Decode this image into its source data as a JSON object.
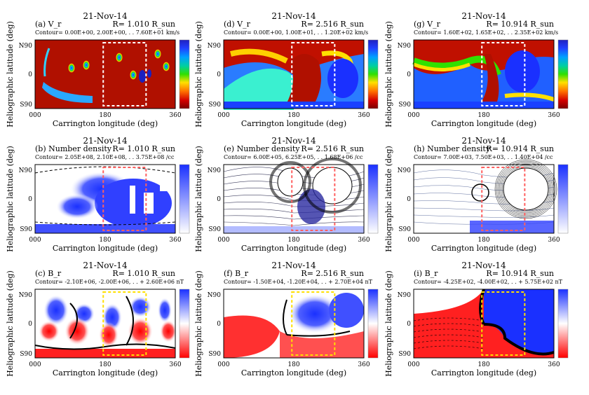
{
  "panels": [
    {
      "id": "a",
      "date": "21-Nov-14",
      "name": "(a) V_r",
      "radius": "R=   1.010 R_sun",
      "contour": "Contour= 0.00E+00, 2.00E+00, . . 7.60E+01 km/s",
      "colormap": "rainbow",
      "box_color": "#ffffff",
      "ylabel": "Heliographic latitude (deg)",
      "xlabel": "Carrington longitude (deg)",
      "xticks": [
        "000",
        "180",
        "360"
      ],
      "yticks": [
        "N90",
        "0",
        "S90"
      ]
    },
    {
      "id": "d",
      "date": "21-Nov-14",
      "name": "(d) V_r",
      "radius": "R=   2.516 R_sun",
      "contour": "Contour= 0.00E+00, 1.00E+01, . . 1.20E+02 km/s",
      "colormap": "rainbow",
      "box_color": "#ffffff",
      "ylabel": "Heliographic latitude (deg)",
      "xlabel": "Carrington longitude (deg)",
      "xticks": [
        "000",
        "180",
        "360"
      ],
      "yticks": [
        "N90",
        "0",
        "S90"
      ]
    },
    {
      "id": "g",
      "date": "21-Nov-14",
      "name": "(g) V_r",
      "radius": "R=   10.914 R_sun",
      "contour": "Contour= 1.60E+02, 1.65E+02, . . 2.35E+02 km/s",
      "colormap": "rainbow",
      "box_color": "#ffffff",
      "ylabel": "Heliographic latitude (deg)",
      "xlabel": "Carrington longitude (deg)",
      "xticks": [
        "000",
        "180",
        "360"
      ],
      "yticks": [
        "N90",
        "0",
        "S90"
      ]
    },
    {
      "id": "b",
      "date": "21-Nov-14",
      "name": "(b) Number density",
      "radius": "R=   1.010 R_sun",
      "contour": "Contour= 2.05E+08, 2.10E+08, . . 3.75E+08 /cc",
      "colormap": "blue",
      "box_color": "#ff6060",
      "ylabel": "Heliographic latitude (deg)",
      "xlabel": "Carrington longitude (deg)",
      "xticks": [
        "000",
        "180",
        "360"
      ],
      "yticks": [
        "N90",
        "0",
        "S90"
      ]
    },
    {
      "id": "e",
      "date": "21-Nov-14",
      "name": "(e) Number density",
      "radius": "R=   2.516 R_sun",
      "contour": "Contour= 6.00E+05, 6.25E+05, . . 1.68E+06 /cc",
      "colormap": "blue",
      "box_color": "#ff6060",
      "ylabel": "Heliographic latitude (deg)",
      "xlabel": "Carrington longitude (deg)",
      "xticks": [
        "000",
        "180",
        "360"
      ],
      "yticks": [
        "N90",
        "0",
        "S90"
      ]
    },
    {
      "id": "h",
      "date": "21-Nov-14",
      "name": "(h) Number density",
      "radius": "R=   10.914 R_sun",
      "contour": "Contour= 7.00E+03, 7.50E+03, . . 1.40E+04 /cc",
      "colormap": "blue",
      "box_color": "#ff6060",
      "ylabel": "Heliographic latitude (deg)",
      "xlabel": "Carrington longitude (deg)",
      "xticks": [
        "000",
        "180",
        "360"
      ],
      "yticks": [
        "N90",
        "0",
        "S90"
      ]
    },
    {
      "id": "c",
      "date": "21-Nov-14",
      "name": "(c) B_r",
      "radius": "R=   1.010 R_sun",
      "contour": "Contour= -2.10E+06, -2.00E+06, . . + 2.60E+06 nT",
      "colormap": "bwr",
      "box_color": "#ffe000",
      "ylabel": "Heliographic latitude (deg)",
      "xlabel": "Carrington longitude (deg)",
      "xticks": [
        "000",
        "180",
        "360"
      ],
      "yticks": [
        "N90",
        "0",
        "S90"
      ]
    },
    {
      "id": "f",
      "date": "21-Nov-14",
      "name": "(f) B_r",
      "radius": "R=   2.516 R_sun",
      "contour": "Contour= -1.50E+04, -1.20E+04, . . + 2.70E+04 nT",
      "colormap": "bwr",
      "box_color": "#ffe000",
      "ylabel": "Heliographic latitude (deg)",
      "xlabel": "Carrington longitude (deg)",
      "xticks": [
        "000",
        "180",
        "360"
      ],
      "yticks": [
        "N90",
        "0",
        "S90"
      ]
    },
    {
      "id": "i",
      "date": "21-Nov-14",
      "name": "(i) B_r",
      "radius": "R=   10.914 R_sun",
      "contour": "Contour= -4.25E+02, -4.00E+02, . . + 5.75E+02 nT",
      "colormap": "bwr",
      "box_color": "#ffe000",
      "ylabel": "Heliographic latitude (deg)",
      "xlabel": "Carrington longitude (deg)",
      "xticks": [
        "000",
        "180",
        "360"
      ],
      "yticks": [
        "N90",
        "0",
        "S90"
      ]
    }
  ],
  "chart_data": {
    "type": "heatmap",
    "date": "21-Nov-14",
    "x_axis": {
      "label": "Carrington longitude (deg)",
      "range": [
        0,
        360
      ],
      "ticks": [
        "000",
        "180",
        "360"
      ]
    },
    "y_axis": {
      "label": "Heliographic latitude (deg)",
      "range": [
        -90,
        90
      ],
      "ticks": [
        "N90",
        "0",
        "S90"
      ]
    },
    "quantities": [
      "V_r",
      "Number density",
      "B_r"
    ],
    "radii_R_sun": [
      1.01,
      2.516,
      10.914
    ],
    "highlight_box_longitude": [
      175,
      285
    ]
  }
}
